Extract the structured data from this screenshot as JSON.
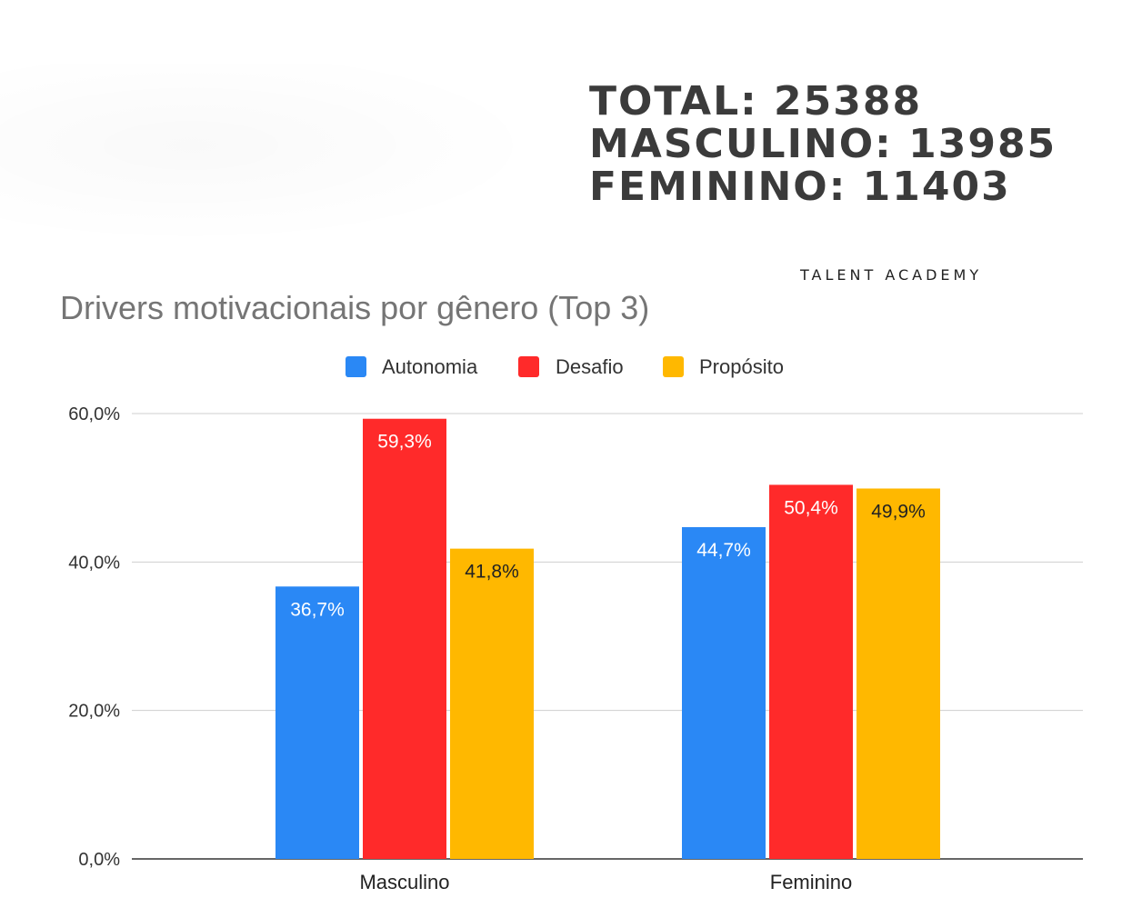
{
  "stats": {
    "total": "TOTAL: 25388",
    "masculino": "MASCULINO: 13985",
    "feminino": "FEMININO: 11403"
  },
  "brand": "TALENT ACADEMY",
  "chart_data": {
    "type": "bar",
    "title": "Drivers motivacionais por gênero (Top 3)",
    "categories": [
      "Masculino",
      "Feminino"
    ],
    "series": [
      {
        "name": "Autonomia",
        "color": "#2a88f5",
        "values": [
          36.7,
          44.7
        ],
        "labels": [
          "36,7%",
          "44,7%"
        ],
        "label_color": "#ffffff"
      },
      {
        "name": "Desafio",
        "color": "#ff2a2a",
        "values": [
          59.3,
          50.4
        ],
        "labels": [
          "59,3%",
          "50,4%"
        ],
        "label_color": "#ffffff"
      },
      {
        "name": "Propósito",
        "color": "#ffb800",
        "values": [
          41.8,
          49.9
        ],
        "labels": [
          "41,8%",
          "49,9%"
        ],
        "label_color": "#222222"
      }
    ],
    "ylim": [
      0,
      60
    ],
    "yticks": [
      0,
      20,
      40,
      60
    ],
    "ytick_labels": [
      "0,0%",
      "20,0%",
      "40,0%",
      "60,0%"
    ],
    "xlabel": "",
    "ylabel": "",
    "legend": "top-center",
    "grid": true
  }
}
